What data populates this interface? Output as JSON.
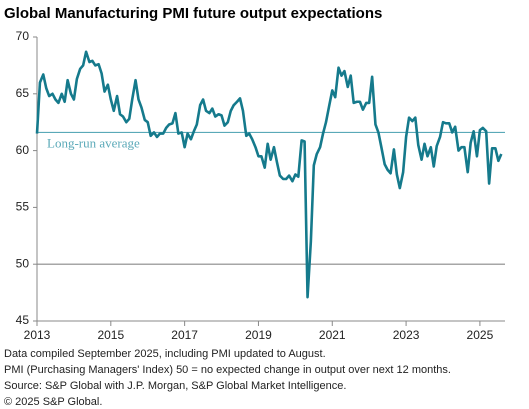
{
  "chart_data": {
    "type": "line",
    "title": "Global Manufacturing PMI future output expectations",
    "notes": [
      "Data compiled September 2025, including PMI updated to August.",
      "PMI (Purchasing Managers' Index) 50 = no expected change in output over next 12 months.",
      "Source: S&P Global with J.P. Morgan, S&P Global Market Intelligence.",
      "© 2025 S&P Global."
    ],
    "x": [
      2013,
      2013.08,
      2013.17,
      2013.25,
      2013.33,
      2013.42,
      2013.5,
      2013.58,
      2013.67,
      2013.75,
      2013.83,
      2013.92,
      2014,
      2014.08,
      2014.17,
      2014.25,
      2014.33,
      2014.42,
      2014.5,
      2014.58,
      2014.67,
      2014.75,
      2014.83,
      2014.92,
      2015,
      2015.08,
      2015.17,
      2015.25,
      2015.33,
      2015.42,
      2015.5,
      2015.58,
      2015.67,
      2015.75,
      2015.83,
      2015.92,
      2016,
      2016.08,
      2016.17,
      2016.25,
      2016.33,
      2016.42,
      2016.5,
      2016.58,
      2016.67,
      2016.75,
      2016.83,
      2016.92,
      2017,
      2017.08,
      2017.17,
      2017.25,
      2017.33,
      2017.42,
      2017.5,
      2017.58,
      2017.67,
      2017.75,
      2017.83,
      2017.92,
      2018,
      2018.08,
      2018.17,
      2018.25,
      2018.33,
      2018.42,
      2018.5,
      2018.58,
      2018.67,
      2018.75,
      2018.83,
      2018.92,
      2019,
      2019.08,
      2019.17,
      2019.25,
      2019.33,
      2019.42,
      2019.5,
      2019.58,
      2019.67,
      2019.75,
      2019.83,
      2019.92,
      2020,
      2020.08,
      2020.17,
      2020.25,
      2020.33,
      2020.42,
      2020.5,
      2020.58,
      2020.67,
      2020.75,
      2020.83,
      2020.92,
      2021,
      2021.08,
      2021.17,
      2021.25,
      2021.33,
      2021.42,
      2021.5,
      2021.58,
      2021.67,
      2021.75,
      2021.83,
      2021.92,
      2022,
      2022.08,
      2022.17,
      2022.25,
      2022.33,
      2022.42,
      2022.5,
      2022.58,
      2022.67,
      2022.75,
      2022.83,
      2022.92,
      2023,
      2023.08,
      2023.17,
      2023.25,
      2023.33,
      2023.42,
      2023.5,
      2023.58,
      2023.67,
      2023.75,
      2023.83,
      2023.92,
      2024,
      2024.08,
      2024.17,
      2024.25,
      2024.33,
      2024.42,
      2024.5,
      2024.58,
      2024.67,
      2024.75,
      2024.83,
      2024.92,
      2025,
      2025.08,
      2025.17,
      2025.25,
      2025.33,
      2025.42,
      2025.5,
      2025.58
    ],
    "series": [
      {
        "name": "Future output expectations",
        "color": "#157a8c",
        "values": [
          61.5,
          66,
          66.7,
          65.5,
          64.8,
          65,
          64.5,
          64.2,
          65,
          64.3,
          66.2,
          65,
          64.5,
          66.3,
          67.2,
          67.5,
          68.7,
          67.8,
          67.9,
          67.5,
          67.6,
          66.8,
          65.2,
          65.8,
          64.5,
          63.5,
          64.8,
          63.2,
          63,
          62.5,
          62.8,
          64.5,
          66.2,
          64.5,
          63.8,
          62.7,
          62.5,
          61.3,
          61.6,
          61.2,
          61.5,
          61.5,
          62,
          62.3,
          62.4,
          63.3,
          61.5,
          61.6,
          60.3,
          61.5,
          61,
          61.7,
          62.3,
          64,
          64.5,
          63.5,
          63.3,
          63.7,
          63,
          63.2,
          63.1,
          62.2,
          62.5,
          63.5,
          64,
          64.3,
          64.6,
          63.5,
          61.3,
          61.5,
          61,
          60.3,
          59.5,
          59.5,
          58.5,
          60.6,
          59.2,
          60.3,
          59,
          57.8,
          57.5,
          57.5,
          57.8,
          57.3,
          57.9,
          57.7,
          60.9,
          60.8,
          47.1,
          52,
          58.7,
          59.7,
          60.3,
          61.5,
          62.5,
          64,
          65.3,
          64.7,
          67.3,
          66.6,
          67,
          65.6,
          66.6,
          64.2,
          64.3,
          64.3,
          63.6,
          64.2,
          64.2,
          66.5,
          62.3,
          61.6,
          60.3,
          58.8,
          58.3,
          58,
          60.1,
          57.9,
          56.7,
          58.1,
          61.2,
          62.9,
          62.6,
          62.9,
          60.5,
          59.2,
          60.6,
          59.5,
          60.3,
          58.6,
          60.4,
          61.2,
          62.5,
          62.4,
          62.4,
          61.6,
          62.1,
          60,
          60.3,
          60.3,
          58.1,
          60.7,
          61.7,
          59.5,
          61.8,
          62,
          61.7,
          57.1,
          60.2,
          60.2,
          59.1,
          59.7
        ]
      }
    ],
    "reference_line": {
      "value": 61.6,
      "label": "Long-run average",
      "color": "#5aa9b8"
    },
    "baseline": {
      "value": 50,
      "color": "#888888"
    },
    "xlim": [
      2013,
      2025.68
    ],
    "xticks": [
      2013,
      2015,
      2017,
      2019,
      2021,
      2023,
      2025
    ],
    "ylim": [
      45,
      70
    ],
    "yticks": [
      45,
      50,
      55,
      60,
      65,
      70
    ],
    "grid": false
  }
}
